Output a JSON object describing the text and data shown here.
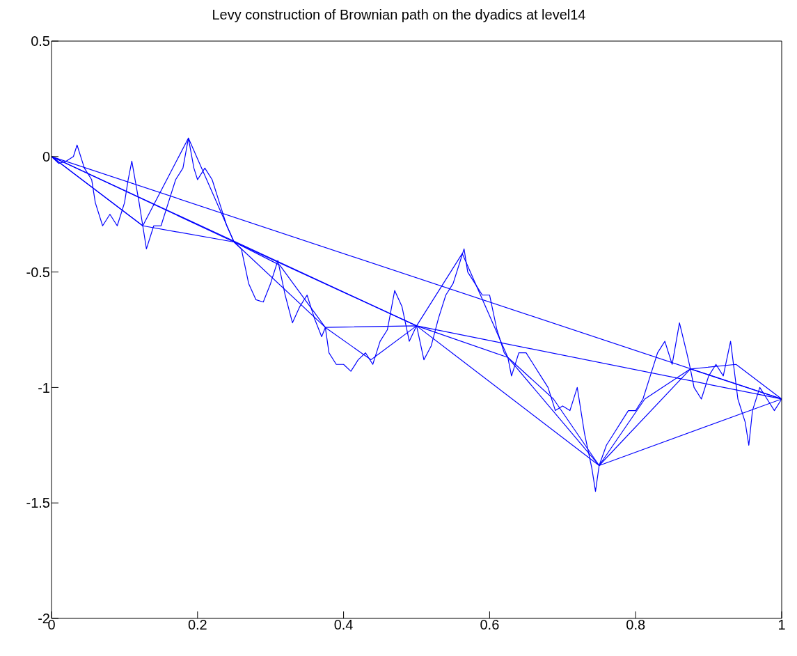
{
  "chart_data": {
    "type": "line",
    "title": "Levy construction of Brownian path on the dyadics at level14",
    "xlim": [
      0,
      1
    ],
    "xticks": [
      0,
      0.2,
      0.4,
      0.6,
      0.8,
      1
    ],
    "ylim": [
      -2,
      0.5
    ],
    "yticks": [
      -2,
      -1.5,
      -1,
      -0.5,
      0,
      0.5
    ],
    "series": [
      {
        "color": "#0000ff",
        "x": [
          0,
          1
        ],
        "values": [
          0,
          -1.05
        ]
      },
      {
        "color": "#0000ff",
        "x": [
          0,
          0.5,
          1
        ],
        "values": [
          0,
          -0.733,
          -1.05
        ]
      },
      {
        "color": "#0000ff",
        "x": [
          0,
          0.25,
          0.5,
          0.75,
          1
        ],
        "values": [
          0,
          -0.37,
          -0.733,
          -1.338,
          -1.05
        ]
      },
      {
        "color": "#0000ff",
        "x": [
          0,
          0.125,
          0.25,
          0.375,
          0.5,
          0.625,
          0.75,
          0.875,
          1
        ],
        "values": [
          0,
          -0.3,
          -0.37,
          -0.74,
          -0.733,
          -0.87,
          -1.338,
          -0.92,
          -1.05
        ]
      },
      {
        "color": "#0000ff",
        "x": [
          0,
          0.0625,
          0.125,
          0.1875,
          0.25,
          0.3125,
          0.375,
          0.4375,
          0.5,
          0.5625,
          0.625,
          0.6875,
          0.75,
          0.8125,
          0.875,
          0.9375,
          1
        ],
        "values": [
          0,
          -0.15,
          -0.3,
          0.08,
          -0.37,
          -0.47,
          -0.74,
          -0.88,
          -0.733,
          -0.42,
          -0.87,
          -1.05,
          -1.338,
          -1.05,
          -0.92,
          -0.9,
          -1.05
        ]
      },
      {
        "color": "#0000ff",
        "x": [
          0,
          0.01,
          0.02,
          0.03,
          0.035,
          0.045,
          0.055,
          0.06,
          0.07,
          0.08,
          0.09,
          0.1,
          0.105,
          0.11,
          0.12,
          0.125,
          0.13,
          0.14,
          0.15,
          0.16,
          0.17,
          0.18,
          0.1875,
          0.195,
          0.2,
          0.21,
          0.22,
          0.23,
          0.24,
          0.25,
          0.26,
          0.27,
          0.28,
          0.29,
          0.3,
          0.31,
          0.32,
          0.33,
          0.34,
          0.35,
          0.36,
          0.37,
          0.375,
          0.38,
          0.39,
          0.4,
          0.41,
          0.42,
          0.43,
          0.44,
          0.45,
          0.46,
          0.47,
          0.48,
          0.49,
          0.5,
          0.51,
          0.52,
          0.53,
          0.54,
          0.55,
          0.56,
          0.565,
          0.57,
          0.58,
          0.59,
          0.6,
          0.61,
          0.62,
          0.625,
          0.63,
          0.64,
          0.65,
          0.66,
          0.67,
          0.68,
          0.69,
          0.7,
          0.71,
          0.72,
          0.73,
          0.74,
          0.745,
          0.75,
          0.76,
          0.77,
          0.78,
          0.79,
          0.8,
          0.81,
          0.82,
          0.83,
          0.84,
          0.85,
          0.86,
          0.87,
          0.875,
          0.88,
          0.89,
          0.9,
          0.91,
          0.92,
          0.93,
          0.94,
          0.95,
          0.955,
          0.96,
          0.97,
          0.98,
          0.99,
          1
        ],
        "values": [
          0,
          -0.03,
          -0.02,
          0,
          0.05,
          -0.05,
          -0.1,
          -0.2,
          -0.3,
          -0.25,
          -0.3,
          -0.2,
          -0.1,
          -0.02,
          -0.2,
          -0.3,
          -0.4,
          -0.3,
          -0.3,
          -0.2,
          -0.1,
          -0.05,
          0.08,
          -0.05,
          -0.1,
          -0.05,
          -0.1,
          -0.2,
          -0.3,
          -0.37,
          -0.4,
          -0.55,
          -0.62,
          -0.63,
          -0.55,
          -0.45,
          -0.6,
          -0.72,
          -0.65,
          -0.6,
          -0.7,
          -0.78,
          -0.74,
          -0.85,
          -0.9,
          -0.9,
          -0.93,
          -0.88,
          -0.85,
          -0.9,
          -0.8,
          -0.75,
          -0.58,
          -0.65,
          -0.8,
          -0.733,
          -0.88,
          -0.82,
          -0.7,
          -0.6,
          -0.55,
          -0.45,
          -0.4,
          -0.5,
          -0.55,
          -0.6,
          -0.6,
          -0.75,
          -0.85,
          -0.87,
          -0.95,
          -0.85,
          -0.85,
          -0.9,
          -0.95,
          -1,
          -1.1,
          -1.08,
          -1.1,
          -1,
          -1.2,
          -1.35,
          -1.45,
          -1.338,
          -1.25,
          -1.2,
          -1.15,
          -1.1,
          -1.1,
          -1.05,
          -0.95,
          -0.85,
          -0.8,
          -0.9,
          -0.72,
          -0.85,
          -0.92,
          -1,
          -1.05,
          -0.95,
          -0.9,
          -0.95,
          -0.8,
          -1.05,
          -1.15,
          -1.25,
          -1.1,
          -1,
          -1.05,
          -1.1,
          -1.05
        ]
      }
    ]
  }
}
